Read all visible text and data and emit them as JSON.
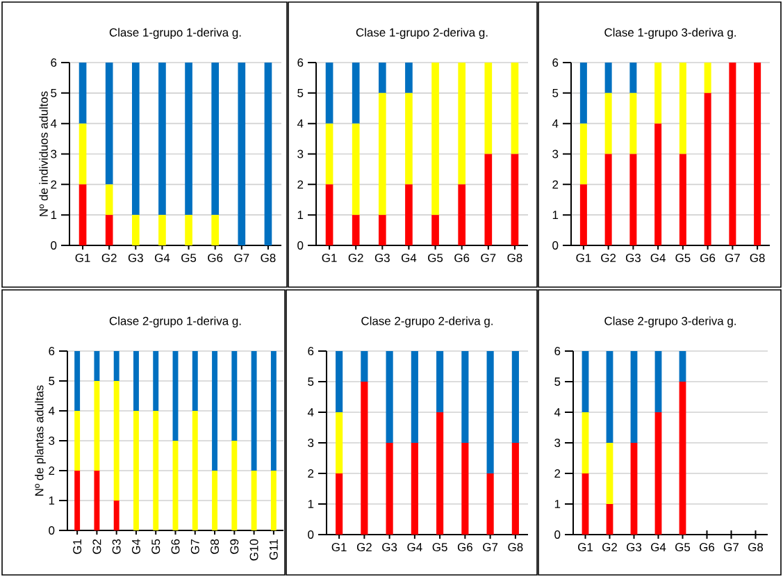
{
  "chart_data": [
    {
      "type": "bar",
      "stacked": true,
      "title": "Clase 1-grupo 1-deriva g.",
      "ylabel": "Nº de individuos adultos",
      "categories": [
        "G1",
        "G2",
        "G3",
        "G4",
        "G5",
        "G6",
        "G7",
        "G8"
      ],
      "ylim": [
        0,
        6
      ],
      "yticks": [
        0,
        1,
        2,
        3,
        4,
        5,
        6
      ],
      "grid": "y",
      "series": [
        {
          "color": "#ff0000",
          "values": [
            2,
            1,
            0,
            0,
            0,
            0,
            0,
            0
          ]
        },
        {
          "color": "#ffff00",
          "values": [
            2,
            1,
            1,
            1,
            1,
            1,
            0,
            0
          ]
        },
        {
          "color": "#0070c0",
          "values": [
            2,
            4,
            5,
            5,
            5,
            5,
            6,
            6
          ]
        }
      ]
    },
    {
      "type": "bar",
      "stacked": true,
      "title": "Clase 1-grupo 2-deriva g.",
      "categories": [
        "G1",
        "G2",
        "G3",
        "G4",
        "G5",
        "G6",
        "G7",
        "G8"
      ],
      "ylim": [
        0,
        6
      ],
      "yticks": [
        0,
        1,
        2,
        3,
        4,
        5,
        6
      ],
      "grid": "y",
      "series": [
        {
          "color": "#ff0000",
          "values": [
            2,
            1,
            1,
            2,
            1,
            2,
            3,
            3
          ]
        },
        {
          "color": "#ffff00",
          "values": [
            2,
            3,
            4,
            3,
            5,
            4,
            3,
            3
          ]
        },
        {
          "color": "#0070c0",
          "values": [
            2,
            2,
            1,
            1,
            0,
            0,
            0,
            0
          ]
        }
      ]
    },
    {
      "type": "bar",
      "stacked": true,
      "title": "Clase 1-grupo 3-deriva g.",
      "categories": [
        "G1",
        "G2",
        "G3",
        "G4",
        "G5",
        "G6",
        "G7",
        "G8"
      ],
      "ylim": [
        0,
        6
      ],
      "yticks": [
        0,
        1,
        2,
        3,
        4,
        5,
        6
      ],
      "grid": "y",
      "series": [
        {
          "color": "#ff0000",
          "values": [
            2,
            3,
            3,
            4,
            3,
            5,
            6,
            6
          ]
        },
        {
          "color": "#ffff00",
          "values": [
            2,
            2,
            2,
            2,
            3,
            1,
            0,
            0
          ]
        },
        {
          "color": "#0070c0",
          "values": [
            2,
            1,
            1,
            0,
            0,
            0,
            0,
            0
          ]
        }
      ]
    },
    {
      "type": "bar",
      "stacked": true,
      "title": "Clase 2-grupo 1-deriva g.",
      "ylabel": "Nº de plantas adultas",
      "categories": [
        "G1",
        "G2",
        "G3",
        "G4",
        "G5",
        "G6",
        "G7",
        "G8",
        "G9",
        "G10",
        "G11"
      ],
      "ylim": [
        0,
        6
      ],
      "yticks": [
        0,
        1,
        2,
        3,
        4,
        5,
        6
      ],
      "grid": "y",
      "series": [
        {
          "color": "#ff0000",
          "values": [
            2,
            2,
            1,
            0,
            0,
            0,
            0,
            0,
            0,
            0,
            0
          ]
        },
        {
          "color": "#ffff00",
          "values": [
            2,
            3,
            4,
            4,
            4,
            3,
            4,
            2,
            3,
            2,
            2
          ]
        },
        {
          "color": "#0070c0",
          "values": [
            2,
            1,
            1,
            2,
            2,
            3,
            2,
            4,
            3,
            4,
            4
          ]
        }
      ]
    },
    {
      "type": "bar",
      "stacked": true,
      "title": "Clase 2-grupo 2-deriva g.",
      "categories": [
        "G1",
        "G2",
        "G3",
        "G4",
        "G5",
        "G6",
        "G7",
        "G8"
      ],
      "ylim": [
        0,
        6
      ],
      "yticks": [
        0,
        1,
        2,
        3,
        4,
        5,
        6
      ],
      "grid": "y",
      "series": [
        {
          "color": "#ff0000",
          "values": [
            2,
            5,
            3,
            3,
            4,
            3,
            2,
            3
          ]
        },
        {
          "color": "#ffff00",
          "values": [
            2,
            0,
            0,
            0,
            0,
            0,
            0,
            0
          ]
        },
        {
          "color": "#0070c0",
          "values": [
            2,
            1,
            3,
            3,
            2,
            3,
            4,
            3
          ]
        }
      ]
    },
    {
      "type": "bar",
      "stacked": true,
      "title": "Clase 2-grupo 3-deriva g.",
      "categories": [
        "G1",
        "G2",
        "G3",
        "G4",
        "G5",
        "G6",
        "G7",
        "G8"
      ],
      "ylim": [
        0,
        6
      ],
      "yticks": [
        0,
        1,
        2,
        3,
        4,
        5,
        6
      ],
      "grid": "y",
      "series": [
        {
          "color": "#ff0000",
          "values": [
            2,
            1,
            3,
            4,
            5,
            null,
            null,
            null
          ]
        },
        {
          "color": "#ffff00",
          "values": [
            2,
            2,
            0,
            0,
            0,
            null,
            null,
            null
          ]
        },
        {
          "color": "#0070c0",
          "values": [
            2,
            3,
            3,
            2,
            1,
            null,
            null,
            null
          ]
        }
      ]
    }
  ]
}
